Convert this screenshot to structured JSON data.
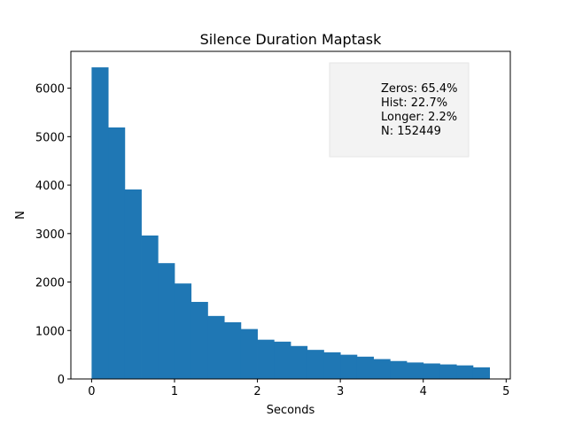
{
  "chart_data": {
    "type": "bar",
    "title": "Silence Duration Maptask",
    "xlabel": "Seconds",
    "ylabel": "N",
    "xlim": [
      -0.25,
      5.05
    ],
    "ylim": [
      0,
      6760
    ],
    "xticks": [
      0,
      1,
      2,
      3,
      4,
      5
    ],
    "yticks": [
      0,
      1000,
      2000,
      3000,
      4000,
      5000,
      6000
    ],
    "bin_edges": [
      0,
      0.2,
      0.4,
      0.6,
      0.8,
      1.0,
      1.2,
      1.4,
      1.6,
      1.8,
      2.0,
      2.2,
      2.4,
      2.6,
      2.8,
      3.0,
      3.2,
      3.4,
      3.6,
      3.8,
      4.0,
      4.2,
      4.4,
      4.6,
      4.8
    ],
    "values": [
      6430,
      5190,
      3910,
      2960,
      2390,
      1970,
      1590,
      1300,
      1170,
      1030,
      810,
      770,
      680,
      600,
      550,
      500,
      460,
      410,
      370,
      340,
      320,
      300,
      280,
      240
    ],
    "bar_color": "#1f77b4",
    "grid": false,
    "annotation": {
      "placement": "top-right",
      "lines": [
        "Zeros: 65.4%",
        "Hist: 22.7%",
        "Longer: 2.2%",
        "N: 152449"
      ]
    }
  }
}
